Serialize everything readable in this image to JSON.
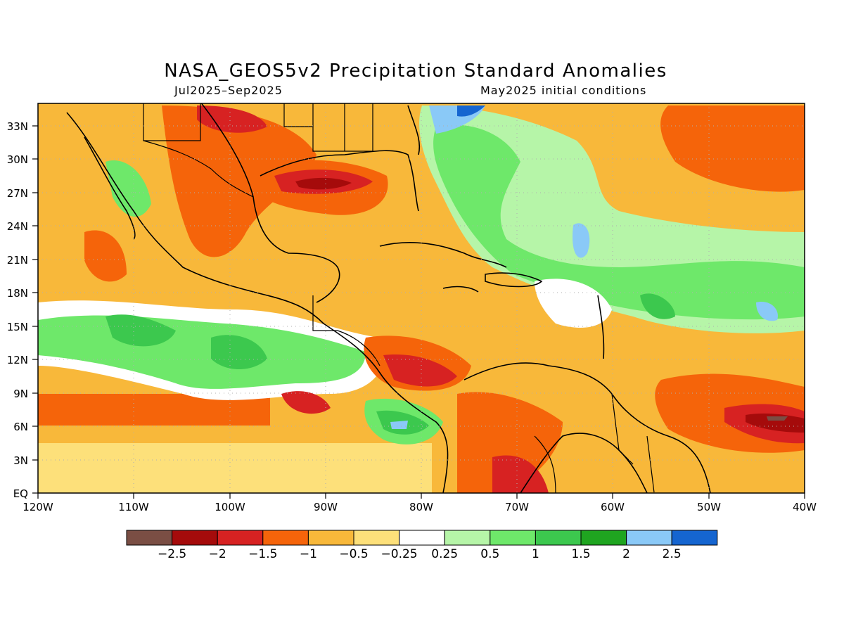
{
  "header": {
    "title": "NASA_GEOS5v2 Precipitation Standard Anomalies",
    "period": "Jul2025–Sep2025",
    "init": "May2025 initial conditions"
  },
  "axes": {
    "lat_labels": [
      "33N",
      "30N",
      "27N",
      "24N",
      "21N",
      "18N",
      "15N",
      "12N",
      "9N",
      "6N",
      "3N",
      "EQ"
    ],
    "lon_labels": [
      "120W",
      "110W",
      "100W",
      "90W",
      "80W",
      "70W",
      "60W",
      "50W",
      "40W"
    ]
  },
  "colorbar": {
    "colors": [
      "#7a4e44",
      "#a50b0b",
      "#d72222",
      "#f5640a",
      "#f8b83a",
      "#fde07a",
      "#ffffff",
      "#b6f5a8",
      "#6ee86a",
      "#3cc84e",
      "#1fa520",
      "#8ac9f7",
      "#1565d0"
    ],
    "labels": [
      "−2.5",
      "−2",
      "−1.5",
      "−1",
      "−0.5",
      "−0.25",
      "0.25",
      "0.5",
      "1",
      "1.5",
      "2",
      "2.5"
    ]
  },
  "map": {
    "extent": "EQ–35N, 120W–40W",
    "field": "precipitation standard anomaly"
  }
}
